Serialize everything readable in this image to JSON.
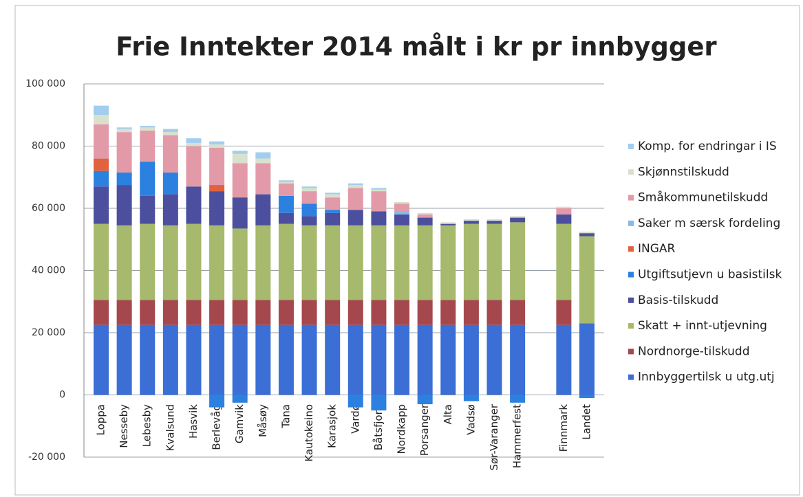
{
  "chart_data": {
    "type": "stacked_bar",
    "title": "Frie Inntekter 2014 målt i kr pr innbygger",
    "categories": [
      "Loppa",
      "Nesseby",
      "Lebesby",
      "Kvalsund",
      "Hasvik",
      "Berlevåg",
      "Gamvik",
      "Måsøy",
      "Tana",
      "Kautokeino",
      "Karasjok",
      "Vardø",
      "Båtsfjord",
      "Nordkapp",
      "Porsanger",
      "Alta",
      "Vadsø",
      "Sør-Varanger",
      "Hammerfest",
      null,
      "Finnmark",
      "Landet"
    ],
    "series": [
      {
        "name": "Innbyggertilsk u utg.utj",
        "color": "#3b6fd6",
        "values": [
          22500,
          22500,
          22500,
          22500,
          22500,
          22500,
          22500,
          22500,
          22500,
          22500,
          22500,
          22500,
          22500,
          22500,
          22500,
          22500,
          22500,
          22500,
          22500,
          null,
          22500,
          23000
        ]
      },
      {
        "name": "Nordnorge-tilskudd",
        "color": "#a5484e",
        "values": [
          8000,
          8000,
          8000,
          8000,
          8000,
          8000,
          8000,
          8000,
          8000,
          8000,
          8000,
          8000,
          8000,
          8000,
          8000,
          8000,
          8000,
          8000,
          8000,
          null,
          8000,
          0
        ]
      },
      {
        "name": "Skatt + innt-utjevning",
        "color": "#a6b96c",
        "values": [
          24500,
          24000,
          24500,
          24000,
          24500,
          24000,
          23000,
          24000,
          24500,
          24000,
          24000,
          24000,
          24000,
          24000,
          24000,
          24000,
          24500,
          24500,
          25000,
          null,
          24500,
          28000
        ]
      },
      {
        "name": "Basis-tilskudd",
        "color": "#4b4f9e",
        "values": [
          12000,
          13000,
          9000,
          10000,
          12000,
          11000,
          10000,
          10000,
          3500,
          3000,
          4000,
          5000,
          4500,
          3500,
          2500,
          500,
          1000,
          1000,
          1500,
          null,
          3000,
          1000
        ]
      },
      {
        "name": "Utgiftsutjevn u basistilsk",
        "color": "#2c80e0",
        "values": [
          5000,
          4000,
          11000,
          7000,
          0,
          -4000,
          -2500,
          0,
          5500,
          4000,
          1000,
          -4000,
          -5000,
          0,
          -3000,
          0,
          -2000,
          0,
          -2500,
          null,
          0,
          -1000
        ]
      },
      {
        "name": "INGAR",
        "color": "#e0623f",
        "values": [
          4000,
          0,
          0,
          0,
          0,
          2000,
          0,
          0,
          0,
          0,
          0,
          0,
          0,
          0,
          0,
          0,
          0,
          0,
          0,
          null,
          0,
          0
        ]
      },
      {
        "name": "Saker m særsk fordeling",
        "color": "#86bbe8",
        "values": [
          0,
          0,
          0,
          0,
          0,
          0,
          0,
          0,
          0,
          0,
          0,
          0,
          0,
          1000,
          0,
          0,
          0,
          0,
          0,
          null,
          0,
          0
        ]
      },
      {
        "name": "Småkommunetilskudd",
        "color": "#e39aa8",
        "values": [
          11000,
          13000,
          10000,
          12000,
          13000,
          12000,
          11000,
          10000,
          4000,
          4000,
          4000,
          7000,
          6500,
          2500,
          1000,
          0,
          0,
          0,
          0,
          null,
          2000,
          0
        ]
      },
      {
        "name": "Skjønnstilskudd",
        "color": "#d9e1cd",
        "values": [
          3000,
          1000,
          1000,
          1000,
          1000,
          1000,
          3000,
          1500,
          500,
          1000,
          1000,
          1000,
          500,
          500,
          500,
          500,
          500,
          500,
          500,
          null,
          500,
          500
        ]
      },
      {
        "name": "Komp. for endringar i IS",
        "color": "#a3cdee",
        "values": [
          3000,
          500,
          500,
          1000,
          1500,
          1000,
          1000,
          2000,
          500,
          500,
          500,
          500,
          500,
          0,
          0,
          0,
          0,
          0,
          0,
          null,
          0,
          0
        ]
      }
    ],
    "ylim": [
      -20000,
      100000
    ],
    "yticks": [
      {
        "value": -20000,
        "label": "-20 000"
      },
      0,
      {
        "value": 20000,
        "label": "20 000"
      },
      {
        "value": 40000,
        "label": "40 000"
      },
      {
        "value": 60000,
        "label": "60 000"
      },
      {
        "value": 80000,
        "label": "80 000"
      },
      {
        "value": 100000,
        "label": "100 000"
      }
    ],
    "grid": true
  }
}
